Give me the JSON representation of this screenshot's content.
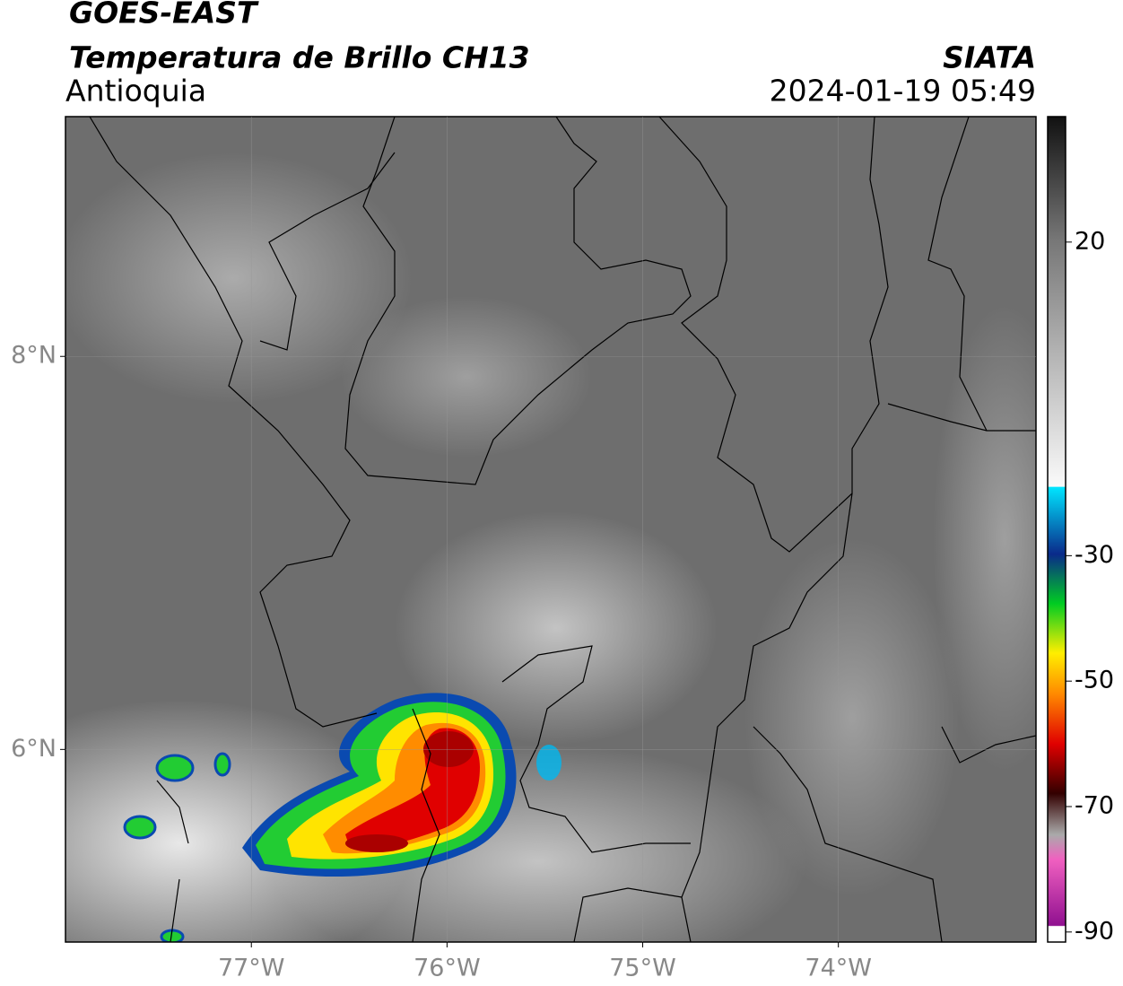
{
  "header": {
    "title": "GOES-EAST",
    "subtitle": "Temperatura de Brillo CH13",
    "source": "SIATA",
    "region": "Antioquia",
    "datetime": "2024-01-19 05:49"
  },
  "map": {
    "xlim": [
      -77.95,
      -72.99
    ],
    "ylim": [
      5.02,
      9.22
    ],
    "xticks": [
      {
        "value": -77,
        "label": "77°W"
      },
      {
        "value": -76,
        "label": "76°W"
      },
      {
        "value": -75,
        "label": "75°W"
      },
      {
        "value": -74,
        "label": "74°W"
      }
    ],
    "yticks": [
      {
        "value": 8,
        "label": "8°N"
      },
      {
        "value": 6,
        "label": "6°N"
      }
    ],
    "grid": true
  },
  "colorbar": {
    "lim": [
      -91.6,
      40
    ],
    "ticks": [
      20,
      -30,
      -50,
      -70,
      -90
    ]
  }
}
